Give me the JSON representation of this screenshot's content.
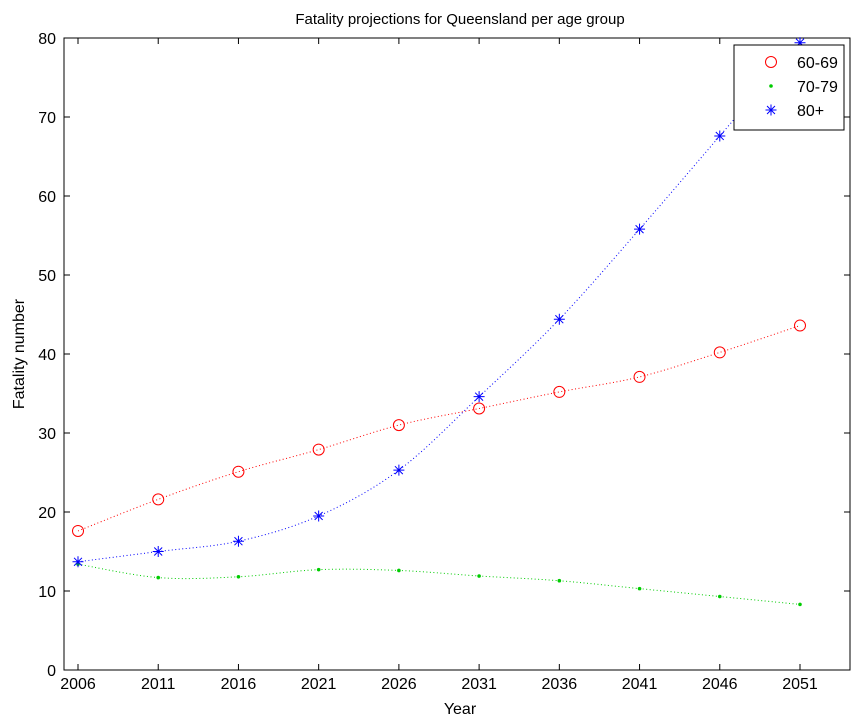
{
  "chart_data": {
    "type": "line",
    "title": "Fatality projections for Queensland per age group",
    "xlabel": "Year",
    "ylabel": "Fatality number",
    "x": [
      2006,
      2011,
      2016,
      2021,
      2026,
      2031,
      2036,
      2041,
      2046,
      2051
    ],
    "xlim": [
      2006,
      2051
    ],
    "ylim": [
      0,
      80
    ],
    "yticks": [
      0,
      10,
      20,
      30,
      40,
      50,
      60,
      70,
      80
    ],
    "grid": false,
    "legend_position": "top-right",
    "series": [
      {
        "name": "60-69",
        "marker": "circle",
        "color": "#ff0000",
        "values": [
          17.6,
          21.6,
          25.1,
          27.9,
          31.0,
          33.1,
          35.2,
          37.1,
          40.2,
          43.6
        ]
      },
      {
        "name": "70-79",
        "marker": "point",
        "color": "#00cc00",
        "values": [
          13.4,
          11.7,
          11.8,
          12.7,
          12.6,
          11.9,
          11.3,
          10.3,
          9.3,
          8.3
        ]
      },
      {
        "name": "80+",
        "marker": "asterisk",
        "color": "#0000ff",
        "values": [
          13.7,
          15.0,
          16.3,
          19.5,
          25.3,
          34.6,
          44.4,
          55.8,
          67.6,
          79.4
        ]
      }
    ]
  }
}
